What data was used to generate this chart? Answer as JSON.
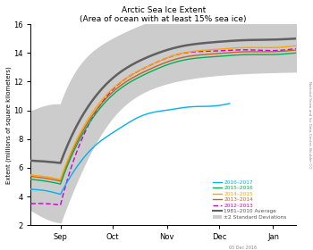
{
  "title": "Arctic Sea Ice Extent",
  "subtitle": "(Area of ocean with at least 15% sea ice)",
  "ylabel": "Extent (millions of square kilometers)",
  "xlabel_ticks": [
    "Sep",
    "Oct",
    "Nov",
    "Dec",
    "Jan"
  ],
  "ylim": [
    2,
    16
  ],
  "yticks": [
    2,
    4,
    6,
    8,
    10,
    12,
    14,
    16
  ],
  "watermark": "05 Dec 2016",
  "side_label": "National Snow and Ice Data Center, Boulder CO",
  "colors": {
    "2016-2017": "#00B0F0",
    "2015-2016": "#00B050",
    "2014-2015": "#FFA500",
    "2013-2014": "#C0622A",
    "2012-2013": "#CC00CC",
    "average": "#606060",
    "std_fill": "#CCCCCC"
  }
}
